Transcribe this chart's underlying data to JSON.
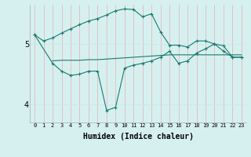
{
  "xlabel": "Humidex (Indice chaleur)",
  "background_color": "#d6f0f0",
  "line_color": "#1a7a6e",
  "grid_color": "#c8e8e8",
  "vgrid_color": "#e8b8b8",
  "xlim": [
    -0.5,
    23.5
  ],
  "ylim": [
    3.7,
    5.65
  ],
  "yticks": [
    4,
    5
  ],
  "xticks": [
    0,
    1,
    2,
    3,
    4,
    5,
    6,
    7,
    8,
    9,
    10,
    11,
    12,
    13,
    14,
    15,
    16,
    17,
    18,
    19,
    20,
    21,
    22,
    23
  ],
  "line1_x": [
    0,
    1,
    2,
    3,
    4,
    5,
    6,
    7,
    8,
    9,
    10,
    11,
    12,
    13,
    14,
    15,
    16,
    17,
    18,
    19,
    20,
    21,
    22,
    23
  ],
  "line1_y": [
    5.15,
    5.05,
    5.1,
    5.18,
    5.25,
    5.32,
    5.38,
    5.42,
    5.48,
    5.55,
    5.58,
    5.57,
    5.45,
    5.5,
    5.2,
    4.98,
    4.98,
    4.95,
    5.05,
    5.05,
    5.0,
    4.88,
    4.78,
    4.78
  ],
  "line2_x": [
    0,
    2,
    3,
    4,
    5,
    6,
    7,
    8,
    9,
    10,
    11,
    12,
    13,
    14,
    15,
    16,
    17,
    18,
    19,
    20,
    21,
    22,
    23
  ],
  "line2_y": [
    5.15,
    4.68,
    4.55,
    4.48,
    4.5,
    4.55,
    4.55,
    3.9,
    3.95,
    4.6,
    4.65,
    4.68,
    4.72,
    4.78,
    4.88,
    4.68,
    4.72,
    4.85,
    4.92,
    5.0,
    4.97,
    4.78,
    4.78
  ],
  "line3_x": [
    2,
    3,
    4,
    5,
    6,
    7,
    8,
    9,
    10,
    11,
    12,
    13,
    14,
    15,
    16,
    17,
    18,
    19,
    20,
    21,
    22,
    23
  ],
  "line3_y": [
    4.72,
    4.73,
    4.73,
    4.73,
    4.74,
    4.74,
    4.75,
    4.76,
    4.77,
    4.78,
    4.79,
    4.8,
    4.81,
    4.82,
    4.82,
    4.82,
    4.82,
    4.82,
    4.82,
    4.82,
    4.82,
    4.82
  ]
}
